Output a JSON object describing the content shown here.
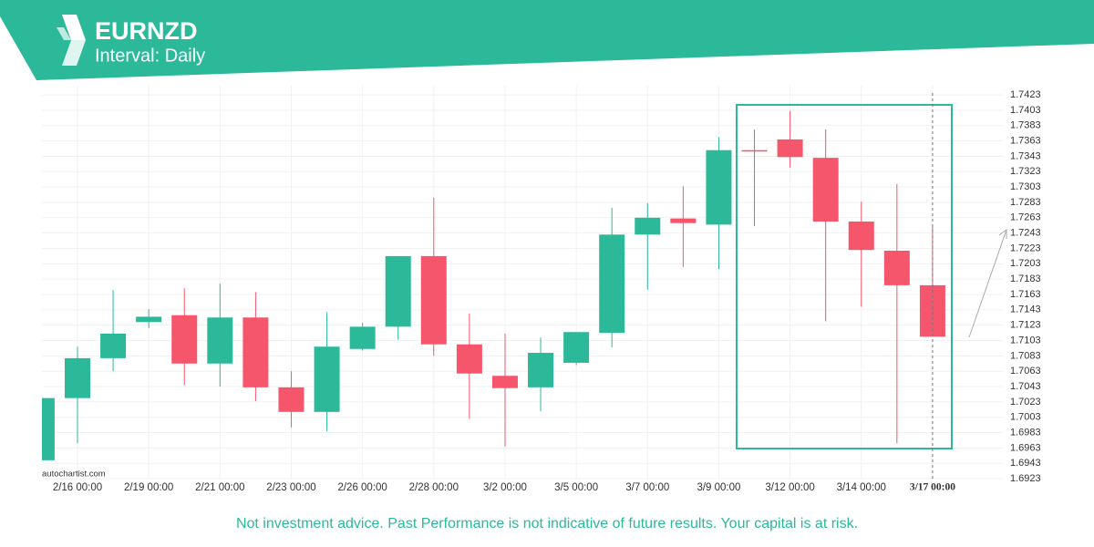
{
  "chart_data": {
    "type": "candlestick",
    "title": "EURNZD",
    "subtitle": "Interval: Daily",
    "categories": [
      null,
      "2/16 00:00",
      null,
      "2/19 00:00",
      null,
      "2/21 00:00",
      null,
      "2/23 00:00",
      null,
      "2/26 00:00",
      null,
      "2/28 00:00",
      null,
      "3/2 00:00",
      null,
      "3/5 00:00",
      null,
      "3/7 00:00",
      null,
      "3/9 00:00",
      null,
      "3/12 00:00",
      null,
      "3/14 00:00",
      null,
      "3/17 00:00"
    ],
    "open": [
      1.6947,
      1.7028,
      1.708,
      1.7127,
      1.7136,
      1.7073,
      1.7133,
      1.7042,
      1.701,
      1.7092,
      1.7121,
      1.7213,
      1.7098,
      1.7057,
      1.7042,
      1.7074,
      1.7113,
      1.7241,
      1.7262,
      1.7254,
      1.7351,
      1.7365,
      1.7341,
      1.7258,
      1.722,
      1.7175
    ],
    "high": [
      1.7028,
      1.7095,
      1.7169,
      1.7144,
      1.7171,
      1.7177,
      1.7166,
      1.7063,
      1.714,
      1.7126,
      1.7213,
      1.7289,
      1.7138,
      1.7112,
      1.7107,
      1.7114,
      1.7276,
      1.7282,
      1.7304,
      1.7368,
      1.7378,
      1.7402,
      1.7378,
      1.7284,
      1.7307,
      1.7252
    ],
    "low": [
      1.6947,
      1.6969,
      1.7063,
      1.7119,
      1.7045,
      1.7043,
      1.7024,
      1.699,
      1.6985,
      1.709,
      1.7104,
      1.7083,
      1.7001,
      1.6965,
      1.7011,
      1.7071,
      1.7094,
      1.7169,
      1.7199,
      1.7196,
      1.7252,
      1.7328,
      1.7128,
      1.7147,
      1.6969,
      1.7108
    ],
    "close": [
      1.7028,
      1.708,
      1.7112,
      1.7134,
      1.7073,
      1.7133,
      1.7042,
      1.701,
      1.7095,
      1.7121,
      1.7213,
      1.7098,
      1.706,
      1.7041,
      1.7087,
      1.7114,
      1.7241,
      1.7263,
      1.7256,
      1.7351,
      1.735,
      1.7342,
      1.7258,
      1.7221,
      1.7175,
      1.7108
    ],
    "up_color": "#2bb99a",
    "down_color": "#f5566c",
    "ylim": [
      1.691,
      1.7435
    ],
    "yticks": [
      1.6923,
      1.6943,
      1.6963,
      1.6983,
      1.7003,
      1.7023,
      1.7043,
      1.7063,
      1.7083,
      1.7103,
      1.7123,
      1.7143,
      1.7163,
      1.7183,
      1.7203,
      1.7223,
      1.7243,
      1.7263,
      1.7283,
      1.7303,
      1.7323,
      1.7343,
      1.7363,
      1.7383,
      1.7403,
      1.7423
    ],
    "grid": true
  },
  "watermark": "autochartist.com",
  "disclaimer": "Not investment advice. Past Performance is not indicative of future results. Your capital is at risk."
}
